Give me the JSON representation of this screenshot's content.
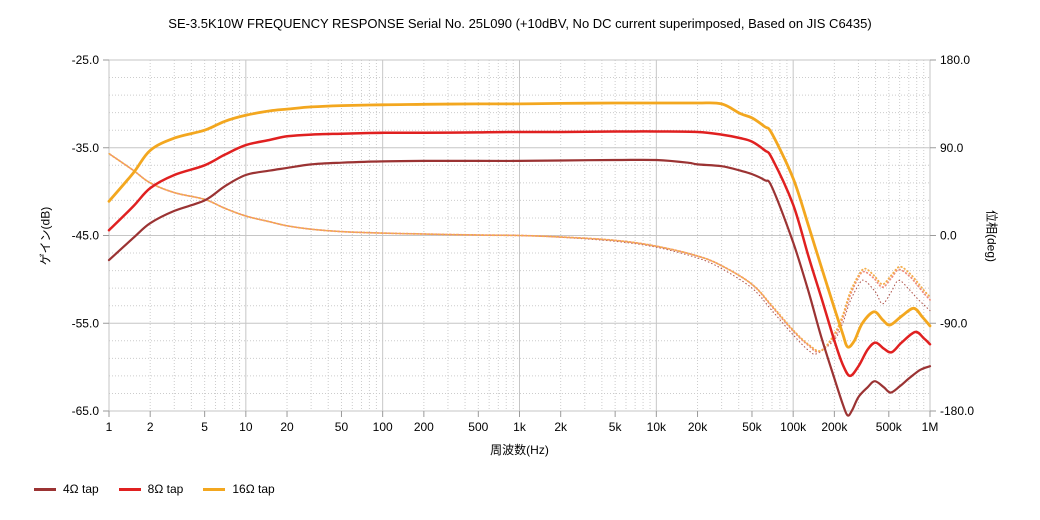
{
  "chart_data": {
    "type": "line",
    "title": "SE-3.5K10W FREQUENCY RESPONSE Serial No. 25L090 (+10dBV,  No DC current superimposed,  Based on JIS C6435)",
    "xlabel": "周波数(Hz)",
    "ylabel_left": "ゲイン(dB)",
    "ylabel_right": "位相(deg)",
    "x_scale": "log",
    "x_range": [
      1,
      1000000
    ],
    "y_left_range": [
      -65,
      -25
    ],
    "y_right_range": [
      -180,
      180
    ],
    "grid": {
      "major_color": "#c6c6c6",
      "minor_color": "#cccccc",
      "minor_db_step": 2
    },
    "x_ticks": [
      {
        "f": 1,
        "label": "1"
      },
      {
        "f": 2,
        "label": "2"
      },
      {
        "f": 5,
        "label": "5"
      },
      {
        "f": 10,
        "label": "10"
      },
      {
        "f": 20,
        "label": "20"
      },
      {
        "f": 50,
        "label": "50"
      },
      {
        "f": 100,
        "label": "100"
      },
      {
        "f": 200,
        "label": "200"
      },
      {
        "f": 500,
        "label": "500"
      },
      {
        "f": 1000,
        "label": "1k"
      },
      {
        "f": 2000,
        "label": "2k"
      },
      {
        "f": 5000,
        "label": "5k"
      },
      {
        "f": 10000,
        "label": "10k"
      },
      {
        "f": 20000,
        "label": "20k"
      },
      {
        "f": 50000,
        "label": "50k"
      },
      {
        "f": 100000,
        "label": "100k"
      },
      {
        "f": 200000,
        "label": "200k"
      },
      {
        "f": 500000,
        "label": "500k"
      },
      {
        "f": 1000000,
        "label": "1M"
      }
    ],
    "y_left_ticks": [
      {
        "v": -25,
        "label": "-25.0"
      },
      {
        "v": -35,
        "label": "-35.0"
      },
      {
        "v": -45,
        "label": "-45.0"
      },
      {
        "v": -55,
        "label": "-55.0"
      },
      {
        "v": -65,
        "label": "-65.0"
      }
    ],
    "y_right_ticks": [
      {
        "v": 180,
        "label": "180.0"
      },
      {
        "v": 90,
        "label": "90.0"
      },
      {
        "v": 0,
        "label": "0.0"
      },
      {
        "v": -90,
        "label": "-90.0"
      },
      {
        "v": -180,
        "label": "-180.0"
      }
    ],
    "series": [
      {
        "name": "4Ω tap gain",
        "axis": "left",
        "style": "solid",
        "color": "#9b3333",
        "width": 2.2,
        "points": [
          [
            1,
            -47.8
          ],
          [
            1.5,
            -45.3
          ],
          [
            2,
            -43.6
          ],
          [
            3,
            -42.2
          ],
          [
            5,
            -41.0
          ],
          [
            7,
            -39.4
          ],
          [
            10,
            -38.1
          ],
          [
            15,
            -37.6
          ],
          [
            20,
            -37.3
          ],
          [
            30,
            -36.9
          ],
          [
            50,
            -36.7
          ],
          [
            100,
            -36.55
          ],
          [
            200,
            -36.5
          ],
          [
            500,
            -36.5
          ],
          [
            1000,
            -36.5
          ],
          [
            2000,
            -36.45
          ],
          [
            5000,
            -36.4
          ],
          [
            10000,
            -36.4
          ],
          [
            17000,
            -36.7
          ],
          [
            20000,
            -36.9
          ],
          [
            30000,
            -37.1
          ],
          [
            41000,
            -37.6
          ],
          [
            50000,
            -38.0
          ],
          [
            62000,
            -38.7
          ],
          [
            70000,
            -39.5
          ],
          [
            100000,
            -45.8
          ],
          [
            130000,
            -51.5
          ],
          [
            160000,
            -56.5
          ],
          [
            200000,
            -61.3
          ],
          [
            230000,
            -64.2
          ],
          [
            250000,
            -65.5
          ],
          [
            270000,
            -64.9
          ],
          [
            300000,
            -63.4
          ],
          [
            350000,
            -62.3
          ],
          [
            395000,
            -61.6
          ],
          [
            460000,
            -62.3
          ],
          [
            515000,
            -62.9
          ],
          [
            600000,
            -62.2
          ],
          [
            700000,
            -61.3
          ],
          [
            850000,
            -60.3
          ],
          [
            1000000,
            -59.9
          ]
        ]
      },
      {
        "name": "8Ω tap gain",
        "axis": "left",
        "style": "solid",
        "color": "#e02020",
        "width": 2.5,
        "points": [
          [
            1,
            -44.4
          ],
          [
            1.5,
            -41.7
          ],
          [
            2,
            -39.6
          ],
          [
            3,
            -38.1
          ],
          [
            5,
            -37.0
          ],
          [
            7,
            -35.8
          ],
          [
            10,
            -34.7
          ],
          [
            15,
            -34.1
          ],
          [
            20,
            -33.7
          ],
          [
            30,
            -33.5
          ],
          [
            50,
            -33.4
          ],
          [
            100,
            -33.3
          ],
          [
            200,
            -33.3
          ],
          [
            500,
            -33.25
          ],
          [
            1000,
            -33.2
          ],
          [
            2000,
            -33.2
          ],
          [
            5000,
            -33.15
          ],
          [
            10000,
            -33.15
          ],
          [
            20000,
            -33.2
          ],
          [
            30000,
            -33.5
          ],
          [
            41000,
            -33.9
          ],
          [
            50000,
            -34.3
          ],
          [
            62000,
            -35.3
          ],
          [
            70000,
            -36.2
          ],
          [
            100000,
            -41.5
          ],
          [
            130000,
            -47.5
          ],
          [
            160000,
            -52.0
          ],
          [
            200000,
            -57.0
          ],
          [
            230000,
            -59.7
          ],
          [
            260000,
            -61.0
          ],
          [
            300000,
            -59.9
          ],
          [
            350000,
            -58.0
          ],
          [
            400000,
            -57.2
          ],
          [
            460000,
            -57.9
          ],
          [
            525000,
            -58.3
          ],
          [
            620000,
            -57.2
          ],
          [
            780000,
            -56.0
          ],
          [
            900000,
            -56.7
          ],
          [
            1000000,
            -57.4
          ]
        ]
      },
      {
        "name": "16Ω tap gain",
        "axis": "left",
        "style": "solid",
        "color": "#f3a71f",
        "width": 2.8,
        "points": [
          [
            1,
            -41.1
          ],
          [
            1.5,
            -37.9
          ],
          [
            2,
            -35.3
          ],
          [
            3,
            -33.9
          ],
          [
            5,
            -33.0
          ],
          [
            7,
            -32.0
          ],
          [
            10,
            -31.3
          ],
          [
            15,
            -30.8
          ],
          [
            20,
            -30.6
          ],
          [
            30,
            -30.35
          ],
          [
            50,
            -30.2
          ],
          [
            100,
            -30.1
          ],
          [
            200,
            -30.05
          ],
          [
            500,
            -30.0
          ],
          [
            1000,
            -30.0
          ],
          [
            2000,
            -29.95
          ],
          [
            5000,
            -29.9
          ],
          [
            10000,
            -29.9
          ],
          [
            20000,
            -29.9
          ],
          [
            30000,
            -30.0
          ],
          [
            41000,
            -31.1
          ],
          [
            50000,
            -31.6
          ],
          [
            62000,
            -32.6
          ],
          [
            70000,
            -33.4
          ],
          [
            100000,
            -38.5
          ],
          [
            130000,
            -44.0
          ],
          [
            160000,
            -48.5
          ],
          [
            200000,
            -53.3
          ],
          [
            230000,
            -56.2
          ],
          [
            250000,
            -57.7
          ],
          [
            280000,
            -57.0
          ],
          [
            320000,
            -55.0
          ],
          [
            390000,
            -53.7
          ],
          [
            450000,
            -54.6
          ],
          [
            510000,
            -55.2
          ],
          [
            620000,
            -54.2
          ],
          [
            760000,
            -53.3
          ],
          [
            880000,
            -54.3
          ],
          [
            1000000,
            -55.3
          ]
        ]
      },
      {
        "name": "4Ω tap phase",
        "axis": "right",
        "style": "dotted",
        "color": "#b25a52",
        "width": 1.1,
        "points": [
          [
            1,
            84
          ],
          [
            1.5,
            67
          ],
          [
            2,
            54
          ],
          [
            3,
            44
          ],
          [
            5,
            37
          ],
          [
            7,
            28
          ],
          [
            10,
            20
          ],
          [
            15,
            14
          ],
          [
            20,
            10
          ],
          [
            30,
            6.5
          ],
          [
            50,
            4
          ],
          [
            100,
            2.5
          ],
          [
            200,
            1.5
          ],
          [
            500,
            0.5
          ],
          [
            1000,
            0
          ],
          [
            2000,
            -1.8
          ],
          [
            5000,
            -6
          ],
          [
            10000,
            -12
          ],
          [
            20000,
            -23
          ],
          [
            30000,
            -34
          ],
          [
            50000,
            -54
          ],
          [
            70000,
            -77
          ],
          [
            100000,
            -102
          ],
          [
            130000,
            -118
          ],
          [
            150000,
            -121
          ],
          [
            200000,
            -107
          ],
          [
            230000,
            -90
          ],
          [
            260000,
            -68
          ],
          [
            300000,
            -51
          ],
          [
            330000,
            -46
          ],
          [
            400000,
            -58
          ],
          [
            450000,
            -70
          ],
          [
            520000,
            -58
          ],
          [
            590000,
            -46
          ],
          [
            700000,
            -55
          ],
          [
            800000,
            -64
          ],
          [
            900000,
            -71
          ],
          [
            1000000,
            -77
          ]
        ]
      },
      {
        "name": "8Ω tap phase",
        "axis": "right",
        "style": "dotted",
        "color": "#ef8e7d",
        "width": 1.8,
        "points": [
          [
            1,
            84
          ],
          [
            1.5,
            67
          ],
          [
            2,
            54
          ],
          [
            3,
            44
          ],
          [
            5,
            37
          ],
          [
            7,
            28
          ],
          [
            10,
            20
          ],
          [
            15,
            14
          ],
          [
            20,
            10
          ],
          [
            30,
            6.5
          ],
          [
            50,
            4
          ],
          [
            100,
            2.5
          ],
          [
            200,
            1.5
          ],
          [
            500,
            0.5
          ],
          [
            1000,
            0
          ],
          [
            2000,
            -1.5
          ],
          [
            5000,
            -5
          ],
          [
            10000,
            -11
          ],
          [
            20000,
            -21
          ],
          [
            30000,
            -31
          ],
          [
            50000,
            -50
          ],
          [
            70000,
            -73
          ],
          [
            100000,
            -98
          ],
          [
            130000,
            -113
          ],
          [
            155000,
            -119
          ],
          [
            200000,
            -104
          ],
          [
            230000,
            -85
          ],
          [
            260000,
            -62
          ],
          [
            300000,
            -43
          ],
          [
            330000,
            -37
          ],
          [
            390000,
            -44
          ],
          [
            450000,
            -53
          ],
          [
            520000,
            -44
          ],
          [
            590000,
            -35
          ],
          [
            700000,
            -41
          ],
          [
            800000,
            -50
          ],
          [
            900000,
            -59
          ],
          [
            1000000,
            -66
          ]
        ]
      },
      {
        "name": "16Ω tap phase",
        "axis": "right",
        "style": "dotted",
        "color": "#f4ae4a",
        "width": 1.8,
        "points": [
          [
            1,
            84
          ],
          [
            1.5,
            67
          ],
          [
            2,
            54
          ],
          [
            3,
            44
          ],
          [
            5,
            37
          ],
          [
            7,
            28
          ],
          [
            10,
            20
          ],
          [
            15,
            14
          ],
          [
            20,
            10
          ],
          [
            30,
            6.5
          ],
          [
            50,
            4
          ],
          [
            100,
            2.5
          ],
          [
            200,
            1.5
          ],
          [
            500,
            0.5
          ],
          [
            1000,
            0
          ],
          [
            2000,
            -1.5
          ],
          [
            5000,
            -5
          ],
          [
            10000,
            -11
          ],
          [
            20000,
            -21
          ],
          [
            30000,
            -31
          ],
          [
            50000,
            -50
          ],
          [
            70000,
            -72
          ],
          [
            100000,
            -97
          ],
          [
            130000,
            -112
          ],
          [
            160000,
            -118
          ],
          [
            200000,
            -101
          ],
          [
            230000,
            -82
          ],
          [
            260000,
            -59
          ],
          [
            300000,
            -41
          ],
          [
            335000,
            -34
          ],
          [
            390000,
            -41
          ],
          [
            450000,
            -50
          ],
          [
            520000,
            -41
          ],
          [
            600000,
            -32
          ],
          [
            700000,
            -38
          ],
          [
            800000,
            -47
          ],
          [
            900000,
            -56
          ],
          [
            1000000,
            -63
          ]
        ]
      }
    ]
  },
  "legend": {
    "items": [
      {
        "label": "4Ω tap",
        "color": "#9b3333"
      },
      {
        "label": "8Ω tap",
        "color": "#e02020"
      },
      {
        "label": "16Ω tap",
        "color": "#f3a71f"
      }
    ]
  }
}
